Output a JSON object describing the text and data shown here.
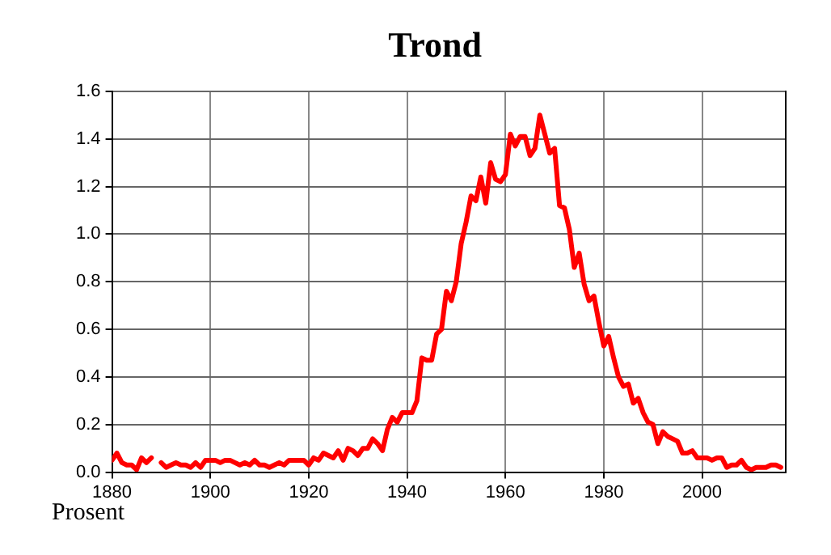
{
  "chart_data": {
    "type": "line",
    "title": "Trond",
    "ylabel": "Prosent",
    "x": [
      1880,
      1881,
      1882,
      1883,
      1884,
      1885,
      1886,
      1887,
      1888,
      1889,
      1890,
      1891,
      1892,
      1893,
      1894,
      1895,
      1896,
      1897,
      1898,
      1899,
      1900,
      1901,
      1902,
      1903,
      1904,
      1905,
      1906,
      1907,
      1908,
      1909,
      1910,
      1911,
      1912,
      1913,
      1914,
      1915,
      1916,
      1917,
      1918,
      1919,
      1920,
      1921,
      1922,
      1923,
      1924,
      1925,
      1926,
      1927,
      1928,
      1929,
      1930,
      1931,
      1932,
      1933,
      1934,
      1935,
      1936,
      1937,
      1938,
      1939,
      1940,
      1941,
      1942,
      1943,
      1944,
      1945,
      1946,
      1947,
      1948,
      1949,
      1950,
      1951,
      1952,
      1953,
      1954,
      1955,
      1956,
      1957,
      1958,
      1959,
      1960,
      1961,
      1962,
      1963,
      1964,
      1965,
      1966,
      1967,
      1968,
      1969,
      1970,
      1971,
      1972,
      1973,
      1974,
      1975,
      1976,
      1977,
      1978,
      1979,
      1980,
      1981,
      1982,
      1983,
      1984,
      1985,
      1986,
      1987,
      1988,
      1989,
      1990,
      1991,
      1992,
      1993,
      1994,
      1995,
      1996,
      1997,
      1998,
      1999,
      2000,
      2001,
      2002,
      2003,
      2004,
      2005,
      2006,
      2007,
      2008,
      2009,
      2010,
      2011,
      2012,
      2013,
      2014,
      2015,
      2016
    ],
    "series": [
      {
        "color": "#ff0000",
        "values": [
          0.05,
          0.08,
          0.04,
          0.03,
          0.03,
          0.01,
          0.06,
          0.04,
          0.06,
          null,
          0.04,
          0.02,
          0.03,
          0.04,
          0.03,
          0.03,
          0.02,
          0.04,
          0.02,
          0.05,
          0.05,
          0.05,
          0.04,
          0.05,
          0.05,
          0.04,
          0.03,
          0.04,
          0.03,
          0.05,
          0.03,
          0.03,
          0.02,
          0.03,
          0.04,
          0.03,
          0.05,
          0.05,
          0.05,
          0.05,
          0.03,
          0.06,
          0.05,
          0.08,
          0.07,
          0.06,
          0.09,
          0.05,
          0.1,
          0.09,
          0.07,
          0.1,
          0.1,
          0.14,
          0.12,
          0.09,
          0.18,
          0.23,
          0.21,
          0.25,
          0.25,
          0.25,
          0.3,
          0.48,
          0.47,
          0.47,
          0.58,
          0.6,
          0.76,
          0.72,
          0.8,
          0.96,
          1.05,
          1.16,
          1.14,
          1.24,
          1.13,
          1.3,
          1.23,
          1.22,
          1.25,
          1.42,
          1.37,
          1.41,
          1.41,
          1.33,
          1.36,
          1.5,
          1.42,
          1.34,
          1.36,
          1.12,
          1.11,
          1.02,
          0.86,
          0.92,
          0.79,
          0.72,
          0.74,
          0.63,
          0.53,
          0.57,
          0.48,
          0.4,
          0.36,
          0.37,
          0.29,
          0.31,
          0.25,
          0.21,
          0.2,
          0.12,
          0.17,
          0.15,
          0.14,
          0.13,
          0.08,
          0.08,
          0.09,
          0.06,
          0.06,
          0.06,
          0.05,
          0.06,
          0.06,
          0.02,
          0.03,
          0.03,
          0.05,
          0.02,
          0.01,
          0.02,
          0.02,
          0.02,
          0.03,
          0.03,
          0.02
        ]
      }
    ],
    "xlim": [
      1880,
      2017
    ],
    "xticks": [
      1880,
      1900,
      1920,
      1940,
      1960,
      1980,
      2000
    ],
    "ylim": [
      0,
      1.6
    ],
    "yticks": [
      {
        "value": 0,
        "label": "0.0"
      },
      0.2,
      0.4,
      0.6,
      0.8,
      {
        "value": 1,
        "label": "1.0"
      },
      1.2,
      1.4,
      1.6
    ],
    "grid": true,
    "legend": false,
    "marker": "none",
    "line_style": "solid"
  }
}
